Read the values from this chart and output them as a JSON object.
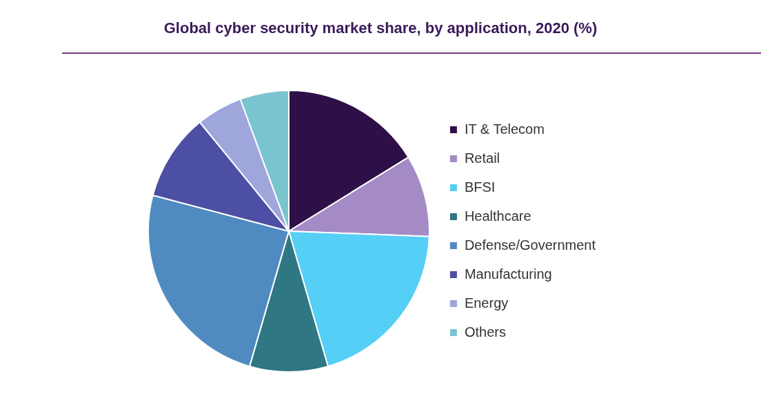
{
  "chart_data": {
    "type": "pie",
    "title": "Global cyber security market share, by application, 2020 (%)",
    "categories": [
      "IT & Telecom",
      "Retail",
      "BFSI",
      "Healthcare",
      "Defense/Government",
      "Manufacturing",
      "Energy",
      "Others"
    ],
    "values": [
      16.2,
      9.4,
      19.9,
      9.0,
      24.6,
      10.0,
      5.3,
      5.6
    ],
    "colors": [
      "#2e0f47",
      "#a48bc6",
      "#55cff5",
      "#2e7783",
      "#4f8bc0",
      "#4c4fa3",
      "#9ea6dc",
      "#7ac4d0"
    ],
    "legend": "right"
  }
}
